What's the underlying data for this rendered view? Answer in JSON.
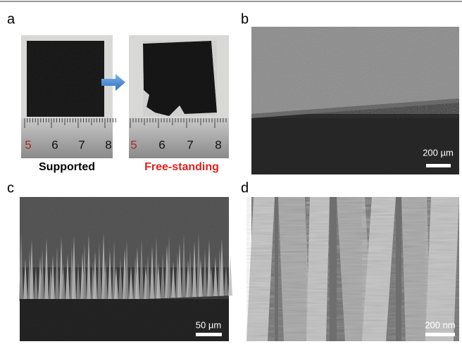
{
  "panel_a": {
    "label": "a",
    "left_caption": "Supported",
    "right_caption": "Free-standing",
    "ruler_numbers": [
      "5",
      "6",
      "7",
      "8"
    ]
  },
  "panel_b": {
    "label": "b",
    "scale_bar": "200 µm"
  },
  "panel_c": {
    "label": "c",
    "scale_bar": "50 µm"
  },
  "panel_d": {
    "label": "d",
    "scale_bar": "200 nm"
  }
}
